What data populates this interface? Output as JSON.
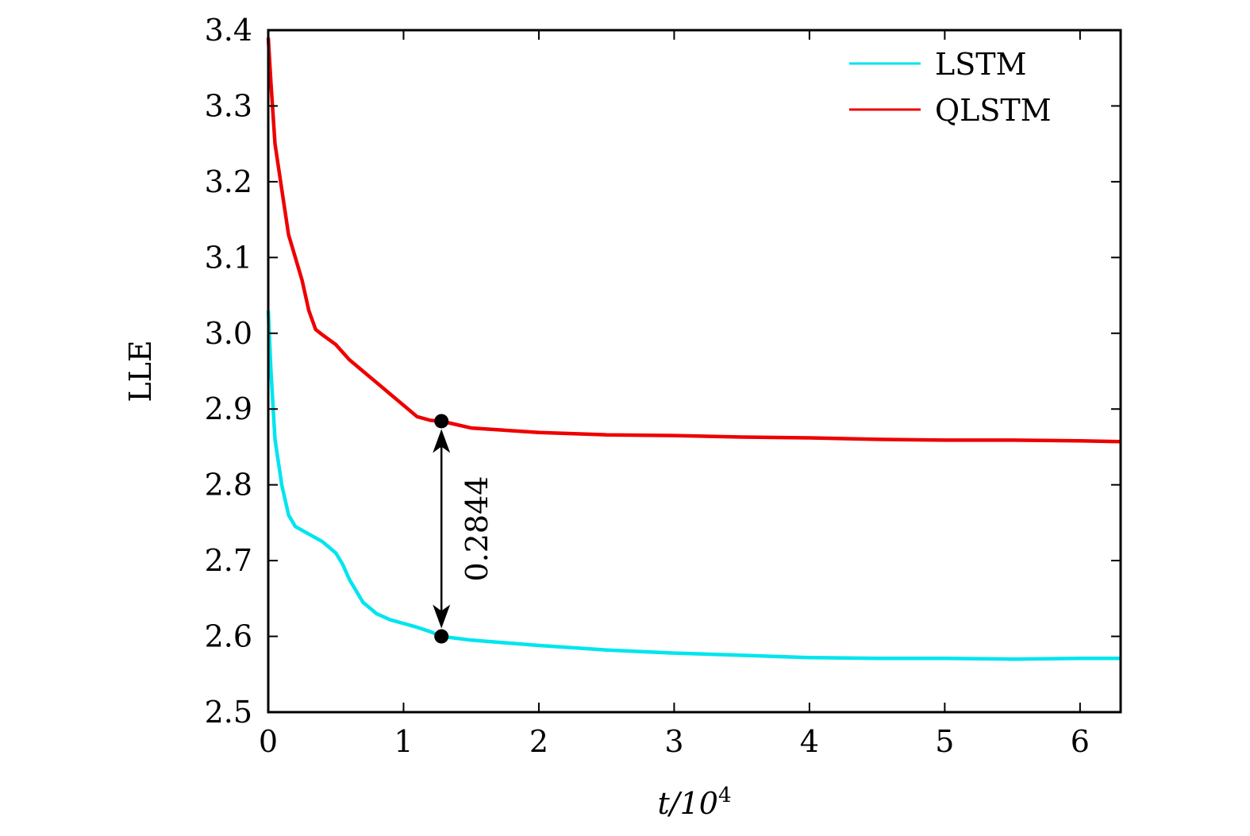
{
  "chart_data": {
    "type": "line",
    "xlabel": "t/10",
    "xlabel_exp": "4",
    "ylabel": "LLE",
    "xlim": [
      0,
      6.3
    ],
    "ylim": [
      2.5,
      3.4
    ],
    "x_ticks": [
      "0",
      "1",
      "2",
      "3",
      "4",
      "5",
      "6"
    ],
    "y_ticks": [
      "2.5",
      "2.6",
      "2.7",
      "2.8",
      "2.9",
      "3.0",
      "3.1",
      "3.2",
      "3.3",
      "3.4"
    ],
    "grid": false,
    "legend_position": "top-right",
    "series": [
      {
        "name": "LSTM",
        "color": "#00e5ee",
        "x": [
          0,
          0.02,
          0.05,
          0.1,
          0.15,
          0.2,
          0.3,
          0.4,
          0.5,
          0.55,
          0.6,
          0.65,
          0.7,
          0.8,
          0.9,
          1.0,
          1.1,
          1.2,
          1.28,
          1.5,
          2.0,
          2.5,
          3.0,
          3.5,
          4.0,
          4.5,
          5.0,
          5.5,
          6.0,
          6.3
        ],
        "y": [
          3.03,
          2.95,
          2.86,
          2.8,
          2.76,
          2.745,
          2.735,
          2.725,
          2.71,
          2.695,
          2.675,
          2.66,
          2.645,
          2.63,
          2.622,
          2.617,
          2.612,
          2.606,
          2.6,
          2.595,
          2.588,
          2.582,
          2.578,
          2.575,
          2.572,
          2.571,
          2.571,
          2.57,
          2.571,
          2.571
        ]
      },
      {
        "name": "QLSTM",
        "color": "#ee0000",
        "x": [
          0,
          0.02,
          0.05,
          0.1,
          0.15,
          0.2,
          0.25,
          0.3,
          0.35,
          0.4,
          0.5,
          0.6,
          0.7,
          0.8,
          0.9,
          1.0,
          1.1,
          1.2,
          1.28,
          1.5,
          2.0,
          2.5,
          3.0,
          3.5,
          4.0,
          4.5,
          5.0,
          5.5,
          6.0,
          6.3
        ],
        "y": [
          3.39,
          3.33,
          3.25,
          3.19,
          3.13,
          3.1,
          3.07,
          3.03,
          3.005,
          2.998,
          2.985,
          2.965,
          2.95,
          2.935,
          2.92,
          2.905,
          2.89,
          2.885,
          2.884,
          2.875,
          2.869,
          2.866,
          2.865,
          2.863,
          2.862,
          2.86,
          2.859,
          2.859,
          2.858,
          2.857
        ]
      }
    ],
    "annotation": {
      "label": "0.2844",
      "x": 1.28,
      "y_top": 2.884,
      "y_bottom": 2.6
    }
  }
}
